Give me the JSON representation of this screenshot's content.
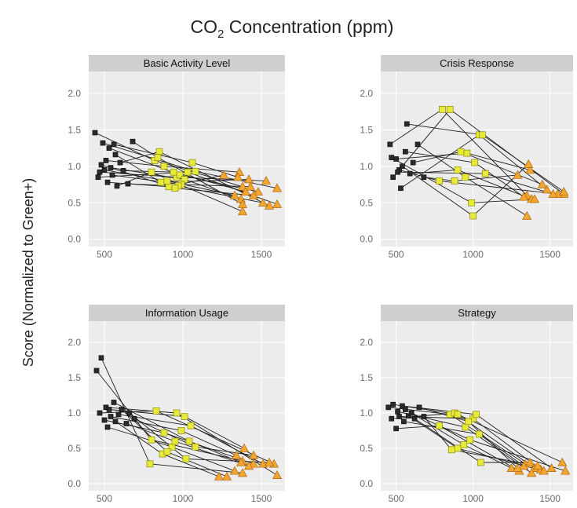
{
  "chart_data": {
    "type": "scatter",
    "title": "CO₂ Concentration (ppm)",
    "title_main": "CO",
    "title_sub": "2",
    "title_rest": " Concentration (ppm)",
    "ylabel": "Score (Normalized to Green+)",
    "x_ticks": [
      "500",
      "1000",
      "1500"
    ],
    "y_ticks": [
      "0.0",
      "0.5",
      "1.0",
      "1.5",
      "2.0"
    ],
    "xlim": [
      400,
      1650
    ],
    "ylim": [
      -0.1,
      2.3
    ],
    "grid": true,
    "colors": {
      "panel_bg": "#ececec",
      "strip_bg": "#cfcfcf",
      "grid": "#ffffff",
      "low": "#2b2b2b",
      "mid": "#e8ea3a",
      "high": "#f2a630",
      "line": "#1e1e1e",
      "marker_edge": "#3a3a3a"
    },
    "marker_shapes": {
      "low": "square",
      "mid": "square",
      "high": "triangle"
    },
    "panels": [
      {
        "name": "Basic Activity Level",
        "subjects": [
          [
            [
              440,
              1.46
            ],
            [
              820,
              1.08
            ],
            [
              1380,
              0.72
            ]
          ],
          [
            [
              470,
              0.92
            ],
            [
              960,
              0.85
            ],
            [
              1530,
              0.8
            ]
          ],
          [
            [
              490,
              1.32
            ],
            [
              1080,
              0.93
            ],
            [
              1600,
              0.7
            ]
          ],
          [
            [
              510,
              1.08
            ],
            [
              880,
              1.0
            ],
            [
              1360,
              0.92
            ]
          ],
          [
            [
              520,
              0.78
            ],
            [
              910,
              0.72
            ],
            [
              1260,
              0.88
            ]
          ],
          [
            [
              530,
              1.25
            ],
            [
              980,
              0.88
            ],
            [
              1480,
              0.65
            ]
          ],
          [
            [
              540,
              0.98
            ],
            [
              1010,
              0.82
            ],
            [
              1370,
              0.55
            ]
          ],
          [
            [
              550,
              0.88
            ],
            [
              990,
              0.75
            ],
            [
              1430,
              0.72
            ]
          ],
          [
            [
              560,
              1.3
            ],
            [
              1060,
              1.05
            ],
            [
              1350,
              0.85
            ]
          ],
          [
            [
              570,
              1.16
            ],
            [
              860,
              0.78
            ],
            [
              1420,
              0.82
            ]
          ],
          [
            [
              580,
              0.73
            ],
            [
              800,
              0.92
            ],
            [
              1380,
              0.38
            ]
          ],
          [
            [
              600,
              1.05
            ],
            [
              850,
              1.2
            ],
            [
              1550,
              0.46
            ]
          ],
          [
            [
              620,
              0.94
            ],
            [
              940,
              0.92
            ],
            [
              1400,
              0.65
            ]
          ],
          [
            [
              650,
              0.76
            ],
            [
              970,
              0.73
            ],
            [
              1510,
              0.5
            ]
          ],
          [
            [
              680,
              1.34
            ],
            [
              840,
              1.12
            ],
            [
              1380,
              0.48
            ]
          ],
          [
            [
              460,
              0.85
            ],
            [
              1030,
              0.92
            ],
            [
              1600,
              0.48
            ]
          ],
          [
            [
              500,
              0.95
            ],
            [
              900,
              0.8
            ],
            [
              1330,
              0.6
            ]
          ],
          [
            [
              480,
              1.02
            ],
            [
              950,
              0.7
            ],
            [
              1450,
              0.6
            ]
          ]
        ]
      },
      {
        "name": "Crisis Response",
        "subjects": [
          [
            [
              460,
              1.3
            ],
            [
              800,
              1.78
            ],
            [
              1350,
              0.6
            ]
          ],
          [
            [
              480,
              0.85
            ],
            [
              850,
              1.78
            ],
            [
              1590,
              0.62
            ]
          ],
          [
            [
              500,
              1.1
            ],
            [
              960,
              1.18
            ],
            [
              1370,
              0.95
            ]
          ],
          [
            [
              520,
              0.95
            ],
            [
              780,
              0.8
            ],
            [
              1550,
              0.62
            ]
          ],
          [
            [
              530,
              0.7
            ],
            [
              1040,
              1.43
            ],
            [
              1480,
              0.68
            ]
          ],
          [
            [
              540,
              1.0
            ],
            [
              1000,
              0.32
            ],
            [
              1360,
              1.03
            ]
          ],
          [
            [
              560,
              1.2
            ],
            [
              1010,
              1.05
            ],
            [
              1330,
              0.58
            ]
          ],
          [
            [
              570,
              1.58
            ],
            [
              1060,
              1.43
            ],
            [
              1590,
              0.65
            ]
          ],
          [
            [
              590,
              0.9
            ],
            [
              900,
              0.95
            ],
            [
              1380,
              0.55
            ]
          ],
          [
            [
              610,
              1.05
            ],
            [
              920,
              1.2
            ],
            [
              1450,
              0.75
            ]
          ],
          [
            [
              640,
              1.3
            ],
            [
              950,
              0.85
            ],
            [
              1350,
              0.32
            ]
          ],
          [
            [
              680,
              0.85
            ],
            [
              880,
              0.8
            ],
            [
              1290,
              0.88
            ]
          ],
          [
            [
              510,
              0.92
            ],
            [
              1080,
              0.9
            ],
            [
              1520,
              0.62
            ]
          ],
          [
            [
              470,
              1.12
            ],
            [
              990,
              0.5
            ],
            [
              1400,
              0.55
            ]
          ]
        ]
      },
      {
        "name": "Information Usage",
        "subjects": [
          [
            [
              450,
              1.6
            ],
            [
              800,
              0.62
            ],
            [
              1380,
              0.32
            ]
          ],
          [
            [
              470,
              1.0
            ],
            [
              830,
              1.03
            ],
            [
              1580,
              0.28
            ]
          ],
          [
            [
              480,
              1.78
            ],
            [
              790,
              0.28
            ],
            [
              1380,
              0.15
            ]
          ],
          [
            [
              500,
              0.9
            ],
            [
              880,
              0.72
            ],
            [
              1450,
              0.28
            ]
          ],
          [
            [
              510,
              1.08
            ],
            [
              960,
              1.0
            ],
            [
              1600,
              0.12
            ]
          ],
          [
            [
              520,
              0.8
            ],
            [
              930,
              0.52
            ],
            [
              1330,
              0.18
            ]
          ],
          [
            [
              530,
              1.05
            ],
            [
              1010,
              0.95
            ],
            [
              1390,
              0.5
            ]
          ],
          [
            [
              540,
              0.95
            ],
            [
              990,
              0.75
            ],
            [
              1340,
              0.4
            ]
          ],
          [
            [
              560,
              1.15
            ],
            [
              1040,
              0.6
            ],
            [
              1370,
              0.3
            ]
          ],
          [
            [
              570,
              0.88
            ],
            [
              870,
              0.42
            ],
            [
              1230,
              0.1
            ]
          ],
          [
            [
              590,
              0.98
            ],
            [
              1050,
              0.82
            ],
            [
              1510,
              0.28
            ]
          ],
          [
            [
              610,
              1.05
            ],
            [
              900,
              0.45
            ],
            [
              1280,
              0.1
            ]
          ],
          [
            [
              640,
              0.85
            ],
            [
              950,
              0.6
            ],
            [
              1420,
              0.25
            ]
          ],
          [
            [
              660,
              1.0
            ],
            [
              1020,
              0.35
            ],
            [
              1550,
              0.3
            ]
          ],
          [
            [
              690,
              0.92
            ],
            [
              1080,
              0.52
            ],
            [
              1450,
              0.4
            ]
          ]
        ]
      },
      {
        "name": "Strategy",
        "subjects": [
          [
            [
              450,
              1.08
            ],
            [
              850,
              0.98
            ],
            [
              1340,
              0.28
            ]
          ],
          [
            [
              470,
              0.92
            ],
            [
              880,
              1.0
            ],
            [
              1580,
              0.3
            ]
          ],
          [
            [
              480,
              1.12
            ],
            [
              900,
              0.98
            ],
            [
              1400,
              0.22
            ]
          ],
          [
            [
              500,
              0.78
            ],
            [
              780,
              0.82
            ],
            [
              1300,
              0.18
            ]
          ],
          [
            [
              510,
              1.02
            ],
            [
              950,
              0.8
            ],
            [
              1380,
              0.15
            ]
          ],
          [
            [
              520,
              0.95
            ],
            [
              1000,
              0.92
            ],
            [
              1440,
              0.2
            ]
          ],
          [
            [
              540,
              1.1
            ],
            [
              1020,
              0.98
            ],
            [
              1510,
              0.22
            ]
          ],
          [
            [
              550,
              0.88
            ],
            [
              1040,
              0.7
            ],
            [
              1330,
              0.25
            ]
          ],
          [
            [
              560,
              1.05
            ],
            [
              940,
              0.55
            ],
            [
              1250,
              0.22
            ]
          ],
          [
            [
              580,
              0.96
            ],
            [
              900,
              0.5
            ],
            [
              1460,
              0.18
            ]
          ],
          [
            [
              600,
              1.0
            ],
            [
              980,
              0.62
            ],
            [
              1600,
              0.18
            ]
          ],
          [
            [
              620,
              0.92
            ],
            [
              1050,
              0.3
            ],
            [
              1370,
              0.3
            ]
          ],
          [
            [
              650,
              1.08
            ],
            [
              970,
              0.88
            ],
            [
              1290,
              0.22
            ]
          ],
          [
            [
              680,
              0.95
            ],
            [
              860,
              0.48
            ],
            [
              1420,
              0.25
            ]
          ]
        ]
      }
    ]
  }
}
